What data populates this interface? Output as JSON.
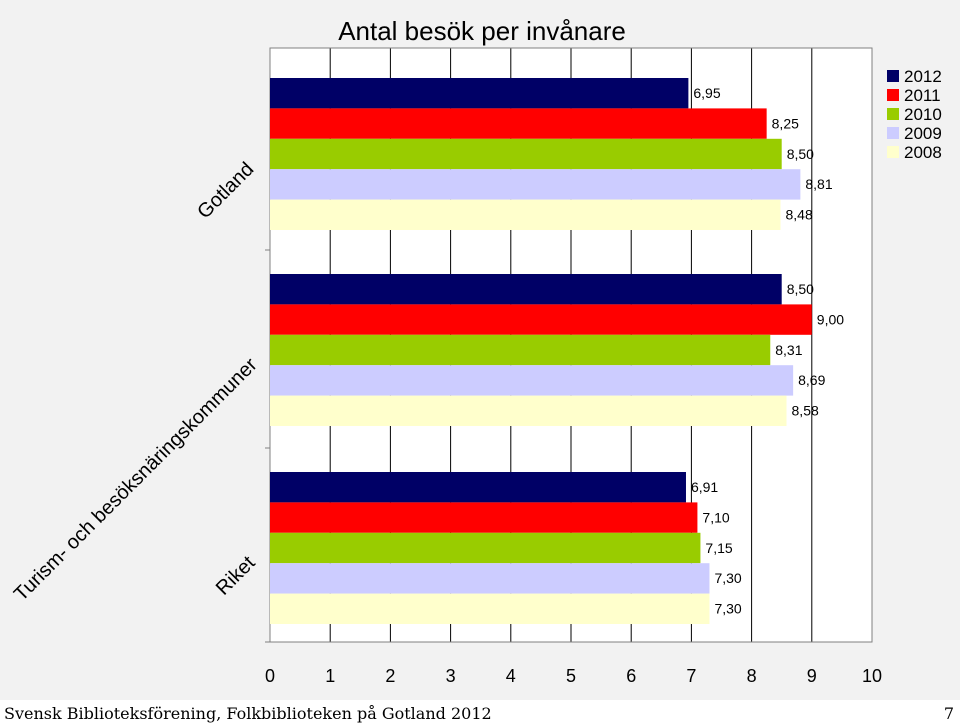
{
  "chart_data": {
    "type": "bar",
    "orientation": "horizontal",
    "title": "Antal besök per invånare",
    "categories": [
      "Gotland",
      "Turism- och besöksnäringskommuner",
      "Riket"
    ],
    "series": [
      {
        "name": "2012",
        "color": "#000066",
        "values": [
          6.95,
          8.5,
          6.91
        ],
        "labels": [
          "6,95",
          "8,50",
          "6,91"
        ]
      },
      {
        "name": "2011",
        "color": "#ff0000",
        "values": [
          8.25,
          9.0,
          7.1
        ],
        "labels": [
          "8,25",
          "9,00",
          "7,10"
        ]
      },
      {
        "name": "2010",
        "color": "#99cc00",
        "values": [
          8.5,
          8.31,
          7.15
        ],
        "labels": [
          "8,50",
          "8,31",
          "7,15"
        ]
      },
      {
        "name": "2009",
        "color": "#ccccff",
        "values": [
          8.81,
          8.69,
          7.3
        ],
        "labels": [
          "8,81",
          "8,69",
          "7,30"
        ]
      },
      {
        "name": "2008",
        "color": "#ffffcc",
        "values": [
          8.48,
          8.58,
          7.3
        ],
        "labels": [
          "8,48",
          "8,58",
          "7,30"
        ]
      }
    ],
    "xlim": [
      0,
      10
    ],
    "xticks": [
      "0",
      "1",
      "2",
      "3",
      "4",
      "5",
      "6",
      "7",
      "8",
      "9",
      "10"
    ],
    "grid": true,
    "legend": "top-right"
  },
  "footer": {
    "left": "Svensk Biblioteksförening, Folkbiblioteken på Gotland 2012",
    "page": "7"
  }
}
